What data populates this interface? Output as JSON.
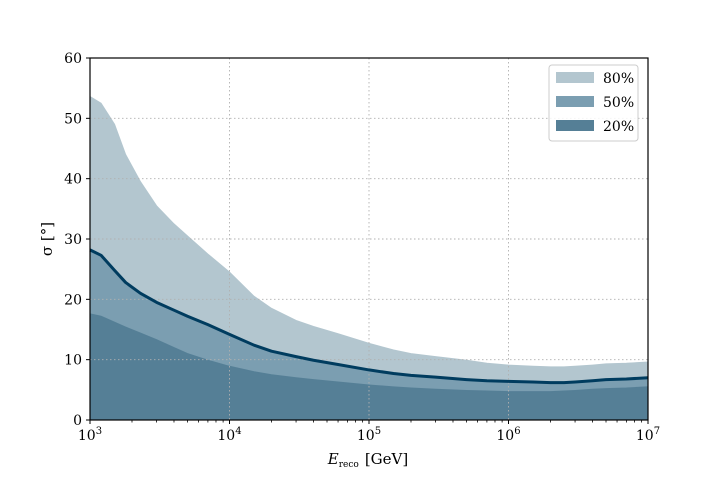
{
  "chart_data": {
    "type": "area",
    "xscale": "log",
    "xlim": [
      1000,
      10000000
    ],
    "ylim": [
      0,
      60
    ],
    "yticks": [
      0,
      10,
      20,
      30,
      40,
      50,
      60
    ],
    "xticks": [
      {
        "value": 1000,
        "base": "10",
        "exp": "3"
      },
      {
        "value": 10000,
        "base": "10",
        "exp": "4"
      },
      {
        "value": 100000,
        "base": "10",
        "exp": "5"
      },
      {
        "value": 1000000,
        "base": "10",
        "exp": "6"
      },
      {
        "value": 10000000,
        "base": "10",
        "exp": "7"
      }
    ],
    "xlabel": {
      "main": "E",
      "sub": "reco",
      "unit": "[GeV]"
    },
    "ylabel": "σ [°]",
    "grid": true,
    "legend_position": "top-right",
    "x": [
      1000,
      1200,
      1500,
      1800,
      2300,
      3000,
      4000,
      5000,
      7000,
      10000,
      15000,
      20000,
      30000,
      40000,
      60000,
      100000,
      150000,
      200000,
      300000,
      500000,
      700000,
      1000000,
      1500000,
      2000000,
      2500000,
      3000000,
      4000000,
      5000000,
      7000000,
      10000000
    ],
    "bands": [
      {
        "name": "80%",
        "color": "#b3c6cf",
        "lower": [
          17.6,
          17.2,
          16.2,
          15.4,
          14.4,
          13.3,
          12.0,
          11.0,
          9.9,
          8.9,
          8.0,
          7.5,
          7.0,
          6.7,
          6.3,
          5.8,
          5.5,
          5.3,
          5.1,
          4.9,
          4.8,
          4.7,
          4.7,
          4.7,
          4.8,
          4.9,
          5.1,
          5.2,
          5.3,
          5.5
        ],
        "upper": [
          53.6,
          52.5,
          49.0,
          44.0,
          39.5,
          35.5,
          32.5,
          30.5,
          27.5,
          24.5,
          20.5,
          18.5,
          16.5,
          15.5,
          14.3,
          12.7,
          11.6,
          11.0,
          10.5,
          9.9,
          9.4,
          9.1,
          8.9,
          8.8,
          8.8,
          8.9,
          9.1,
          9.3,
          9.4,
          9.6
        ]
      },
      {
        "name": "50%",
        "color": "#7b9eb1",
        "lower": [
          17.6,
          17.2,
          16.2,
          15.4,
          14.4,
          13.3,
          12.0,
          11.0,
          9.9,
          8.9,
          8.0,
          7.5,
          7.0,
          6.7,
          6.3,
          5.8,
          5.5,
          5.3,
          5.1,
          4.9,
          4.8,
          4.7,
          4.7,
          4.7,
          4.8,
          4.9,
          5.1,
          5.2,
          5.3,
          5.5
        ],
        "upper": [
          28.2,
          27.3,
          24.8,
          22.8,
          21.0,
          19.5,
          18.2,
          17.2,
          15.8,
          14.2,
          12.4,
          11.4,
          10.5,
          9.9,
          9.2,
          8.3,
          7.7,
          7.4,
          7.1,
          6.7,
          6.5,
          6.4,
          6.3,
          6.2,
          6.2,
          6.3,
          6.5,
          6.7,
          6.8,
          7.0
        ]
      },
      {
        "name": "20%",
        "color": "#557f96",
        "lower": [
          0,
          0,
          0,
          0,
          0,
          0,
          0,
          0,
          0,
          0,
          0,
          0,
          0,
          0,
          0,
          0,
          0,
          0,
          0,
          0,
          0,
          0,
          0,
          0,
          0,
          0,
          0,
          0,
          0,
          0
        ],
        "upper": [
          17.6,
          17.2,
          16.2,
          15.4,
          14.4,
          13.3,
          12.0,
          11.0,
          9.9,
          8.9,
          8.0,
          7.5,
          7.0,
          6.7,
          6.3,
          5.8,
          5.5,
          5.3,
          5.1,
          4.9,
          4.8,
          4.7,
          4.7,
          4.7,
          4.8,
          4.9,
          5.1,
          5.2,
          5.3,
          5.5
        ]
      }
    ],
    "median": {
      "color": "#003c5f",
      "values": [
        28.2,
        27.3,
        24.8,
        22.8,
        21.0,
        19.5,
        18.2,
        17.2,
        15.8,
        14.2,
        12.4,
        11.4,
        10.5,
        9.9,
        9.2,
        8.3,
        7.7,
        7.4,
        7.1,
        6.7,
        6.5,
        6.4,
        6.3,
        6.2,
        6.2,
        6.3,
        6.5,
        6.7,
        6.8,
        7.0
      ]
    }
  }
}
